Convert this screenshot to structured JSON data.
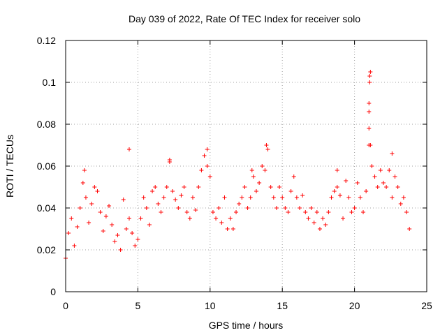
{
  "chart_data": {
    "type": "scatter",
    "title": "Day 039 of 2022, Rate Of TEC Index for receiver solo",
    "xlabel": "GPS time / hours",
    "ylabel": "ROTI / TECUs",
    "xlim": [
      0,
      25
    ],
    "ylim": [
      0,
      0.12
    ],
    "xticks": [
      0,
      5,
      10,
      15,
      20,
      25
    ],
    "xtick_labels": [
      "0",
      "5",
      "10",
      "15",
      "20",
      "25"
    ],
    "yticks": [
      0,
      0.02,
      0.04,
      0.06,
      0.08,
      0.1,
      0.12
    ],
    "ytick_labels": [
      "0",
      "0.02",
      "0.04",
      "0.06",
      "0.08",
      "0.1",
      "0.12"
    ],
    "grid": true,
    "marker": "plus",
    "marker_color": "#ff0000",
    "series": [
      {
        "name": "ROTI",
        "x": [
          0.0,
          0.2,
          0.4,
          0.6,
          0.8,
          1.0,
          1.2,
          1.4,
          1.6,
          1.8,
          2.0,
          2.2,
          2.4,
          2.6,
          2.8,
          3.0,
          3.2,
          3.4,
          3.6,
          3.8,
          4.0,
          4.2,
          4.4,
          4.6,
          4.8,
          5.0,
          5.2,
          5.4,
          5.6,
          5.8,
          6.0,
          6.2,
          6.4,
          6.6,
          6.8,
          7.0,
          7.2,
          7.4,
          7.6,
          7.8,
          8.0,
          8.2,
          8.4,
          8.6,
          8.8,
          9.0,
          9.2,
          9.4,
          9.6,
          9.8,
          10.0,
          10.2,
          10.4,
          10.6,
          10.8,
          11.0,
          11.2,
          11.4,
          11.6,
          11.8,
          12.0,
          12.2,
          12.4,
          12.6,
          12.8,
          13.0,
          13.2,
          13.4,
          13.6,
          13.8,
          14.0,
          14.2,
          14.4,
          14.6,
          14.8,
          15.0,
          15.2,
          15.4,
          15.6,
          15.8,
          16.0,
          16.2,
          16.4,
          16.6,
          16.8,
          17.0,
          17.2,
          17.4,
          17.6,
          17.8,
          18.0,
          18.2,
          18.4,
          18.6,
          18.8,
          19.0,
          19.2,
          19.4,
          19.6,
          19.8,
          20.0,
          20.2,
          20.4,
          20.6,
          20.8,
          21.0,
          21.2,
          21.4,
          21.6,
          21.8,
          22.0,
          22.2,
          22.4,
          22.6,
          22.8,
          23.0,
          23.2,
          23.4,
          23.6,
          23.8,
          4.4,
          7.2,
          9.8,
          13.9,
          21.0,
          21.0,
          21.05,
          21.1,
          21.05,
          21.0,
          21.1,
          22.6,
          1.3,
          18.8,
          12.9
        ],
        "y": [
          0.016,
          0.028,
          0.035,
          0.022,
          0.031,
          0.04,
          0.052,
          0.045,
          0.033,
          0.042,
          0.05,
          0.048,
          0.038,
          0.029,
          0.036,
          0.041,
          0.032,
          0.024,
          0.027,
          0.02,
          0.044,
          0.03,
          0.035,
          0.028,
          0.022,
          0.025,
          0.035,
          0.045,
          0.04,
          0.032,
          0.048,
          0.05,
          0.042,
          0.038,
          0.045,
          0.05,
          0.062,
          0.048,
          0.044,
          0.04,
          0.046,
          0.05,
          0.038,
          0.035,
          0.045,
          0.039,
          0.05,
          0.058,
          0.065,
          0.06,
          0.055,
          0.038,
          0.035,
          0.04,
          0.033,
          0.045,
          0.03,
          0.035,
          0.03,
          0.038,
          0.042,
          0.045,
          0.05,
          0.04,
          0.045,
          0.055,
          0.048,
          0.052,
          0.06,
          0.058,
          0.068,
          0.05,
          0.045,
          0.04,
          0.05,
          0.045,
          0.04,
          0.038,
          0.048,
          0.055,
          0.045,
          0.04,
          0.046,
          0.038,
          0.035,
          0.04,
          0.033,
          0.038,
          0.03,
          0.035,
          0.032,
          0.038,
          0.045,
          0.048,
          0.05,
          0.046,
          0.035,
          0.053,
          0.045,
          0.038,
          0.04,
          0.052,
          0.045,
          0.038,
          0.048,
          0.07,
          0.06,
          0.055,
          0.05,
          0.058,
          0.052,
          0.05,
          0.058,
          0.045,
          0.055,
          0.05,
          0.042,
          0.045,
          0.038,
          0.03,
          0.068,
          0.063,
          0.068,
          0.07,
          0.078,
          0.09,
          0.1,
          0.105,
          0.103,
          0.086,
          0.07,
          0.066,
          0.058,
          0.058,
          0.058
        ]
      }
    ]
  }
}
